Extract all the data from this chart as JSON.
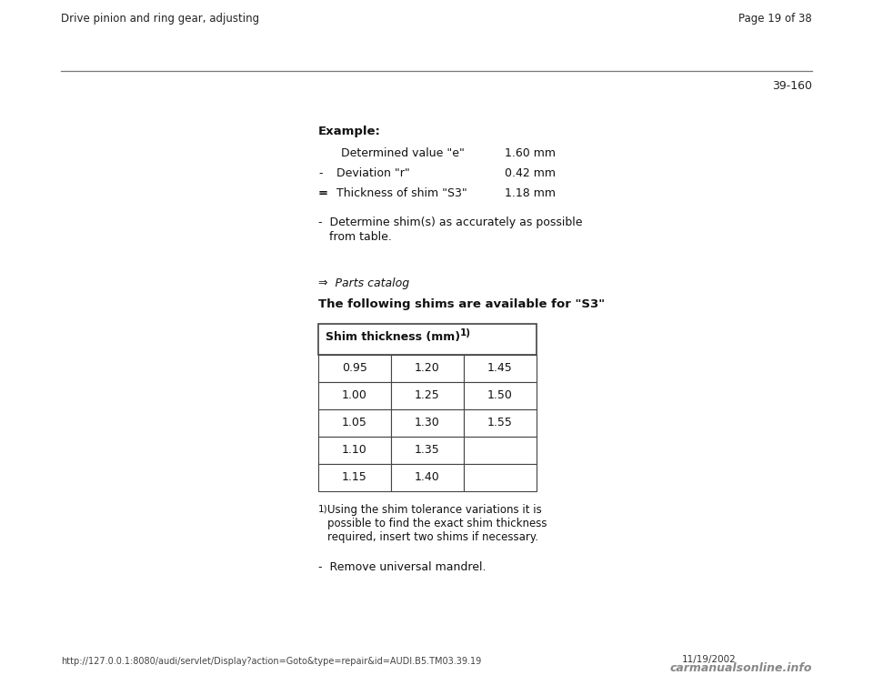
{
  "bg_color": "#ffffff",
  "header_left": "Drive pinion and ring gear, adjusting",
  "header_right": "Page 19 of 38",
  "page_number": "39-160",
  "example_title": "Example:",
  "calc_line0_label": "Determined value \"e\"",
  "calc_line0_value": "1.60 mm",
  "calc_line1_prefix": "-",
  "calc_line1_label": "Deviation \"r\"",
  "calc_line1_value": "0.42 mm",
  "calc_line2_prefix": "=",
  "calc_line2_label": "Thickness of shim \"S3\"",
  "calc_line2_value": "1.18 mm",
  "bullet1_line1": "-  Determine shim(s) as accurately as possible",
  "bullet1_line2": "   from table.",
  "parts_catalog": "⇒  Parts catalog",
  "shim_header": "The following shims are available for \"S3\"",
  "table_col_header": "Shim thickness (mm)",
  "table_superscript": "1)",
  "table_data": [
    [
      "0.95",
      "1.20",
      "1.45"
    ],
    [
      "1.00",
      "1.25",
      "1.50"
    ],
    [
      "1.05",
      "1.30",
      "1.55"
    ],
    [
      "1.10",
      "1.35",
      ""
    ],
    [
      "1.15",
      "1.40",
      ""
    ]
  ],
  "footnote_super": "1)",
  "footnote_text": " Using the shim tolerance variations it is\npossible to find the exact shim thickness\nrequired, insert two shims if necessary.",
  "last_bullet": "-  Remove universal mandrel.",
  "footer_url": "http://127.0.0.1:8080/audi/servlet/Display?action=Goto&type=repair&id=AUDI.B5.TM03.39.19",
  "footer_date": "11/19/2002",
  "footer_logo": "carmanualsonline.info"
}
